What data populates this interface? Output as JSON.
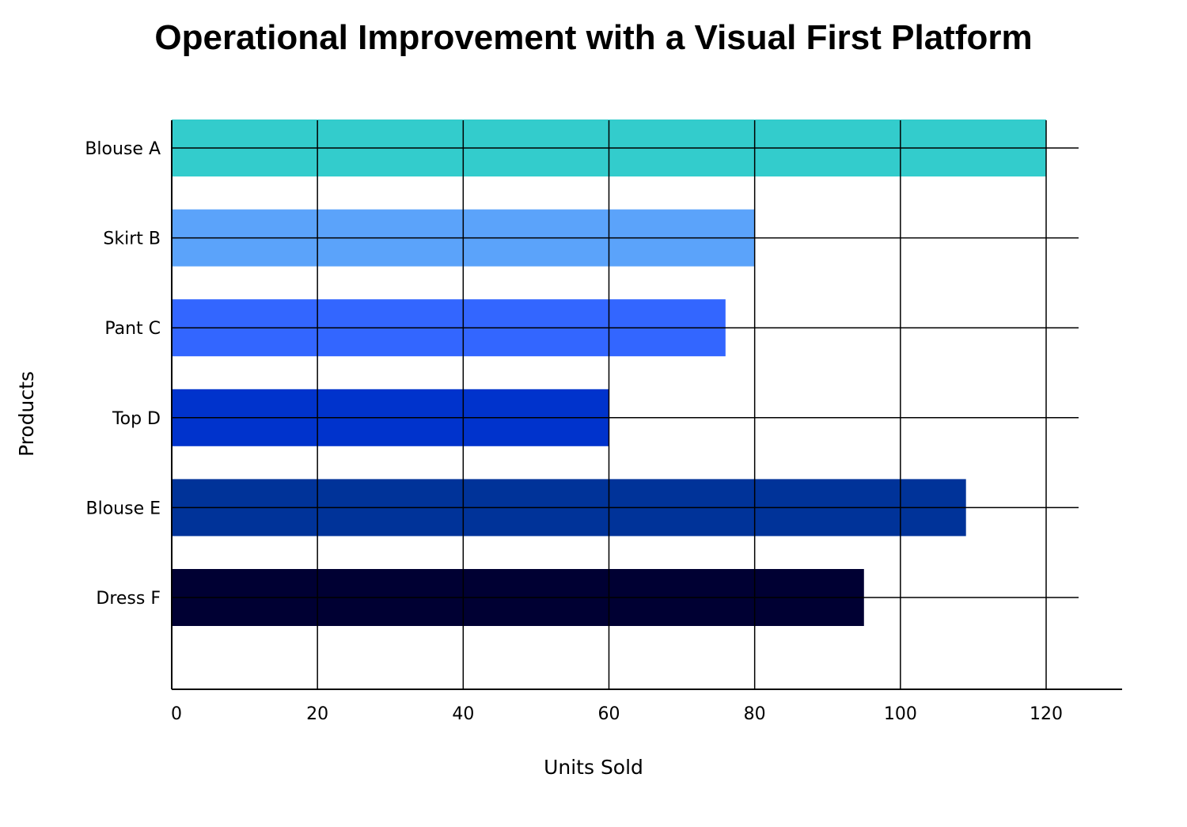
{
  "chart_data": {
    "type": "bar",
    "orientation": "horizontal",
    "title": "Operational Improvement with a Visual First Platform",
    "xlabel": "Units Sold",
    "ylabel": "Products",
    "categories": [
      "Blouse A",
      "Skirt B",
      "Pant C",
      "Top D",
      "Blouse E",
      "Dress F"
    ],
    "values": [
      120,
      80,
      76,
      60,
      109,
      95
    ],
    "colors": [
      "#33CCCC",
      "#5BA3FA",
      "#3366FF",
      "#0033CC",
      "#003399",
      "#000033"
    ],
    "xlim": [
      0,
      130
    ],
    "xticks": [
      "0",
      "20",
      "40",
      "60",
      "80",
      "100",
      "120"
    ],
    "xtick_values": [
      0,
      20,
      40,
      60,
      80,
      100,
      120
    ],
    "grid": true,
    "legend": "none"
  }
}
